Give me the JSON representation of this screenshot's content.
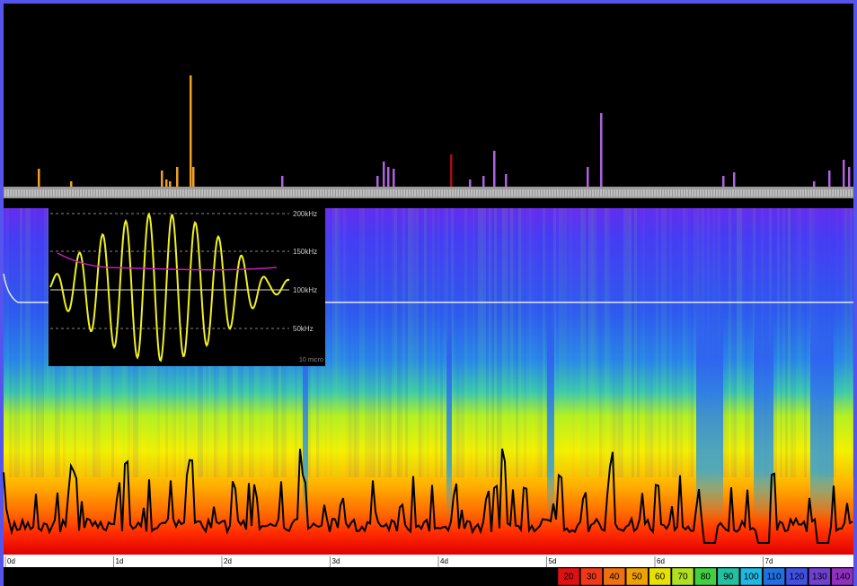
{
  "timeline": {
    "labels": [
      "0d",
      "1d",
      "2d",
      "3d",
      "4d",
      "5d",
      "6d",
      "7d"
    ]
  },
  "inset": {
    "frequency_labels": [
      "200kHz",
      "150kHz",
      "100kHz",
      "50kHz"
    ],
    "time_label": "10 micro"
  },
  "color_scale": {
    "labels": [
      "20",
      "30",
      "40",
      "50",
      "60",
      "70",
      "80",
      "90",
      "100",
      "110",
      "120",
      "130",
      "140"
    ]
  }
}
